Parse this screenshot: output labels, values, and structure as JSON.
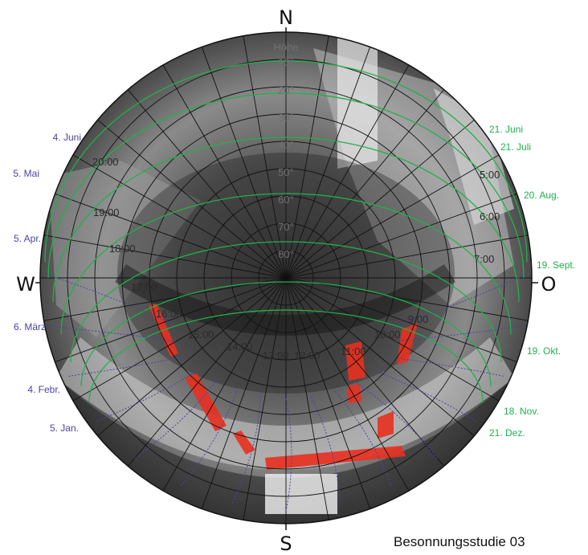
{
  "title": "Besonnungsstudie 03",
  "cardinals": {
    "north": "N",
    "south": "S",
    "west": "W",
    "east": "O"
  },
  "altitude_header": "Höhe",
  "altitude_labels": [
    "10°",
    "20°",
    "30°",
    "40°",
    "50°",
    "60°",
    "70°",
    "80°"
  ],
  "time_labels": [
    "5:00",
    "6:00",
    "7:00",
    "9:00",
    "10:00",
    "11:00",
    "12:00",
    "13:00",
    "14:00",
    "15:00",
    "16:00",
    "17:00",
    "18:00",
    "19:00",
    "20:00"
  ],
  "dates_left": [
    "4. Juni",
    "5. Mai",
    "5. Apr.",
    "6. März",
    "4. Febr.",
    "5. Jan."
  ],
  "dates_right": [
    "21. Juni",
    "21. Juli",
    "20. Aug.",
    "19. Sept.",
    "19. Okt.",
    "18. Nov.",
    "21. Dez."
  ],
  "colors": {
    "left_dates": "#4a44a6",
    "right_dates": "#22b04a",
    "sun_highlight": "#e83020",
    "grid": "#111111"
  }
}
